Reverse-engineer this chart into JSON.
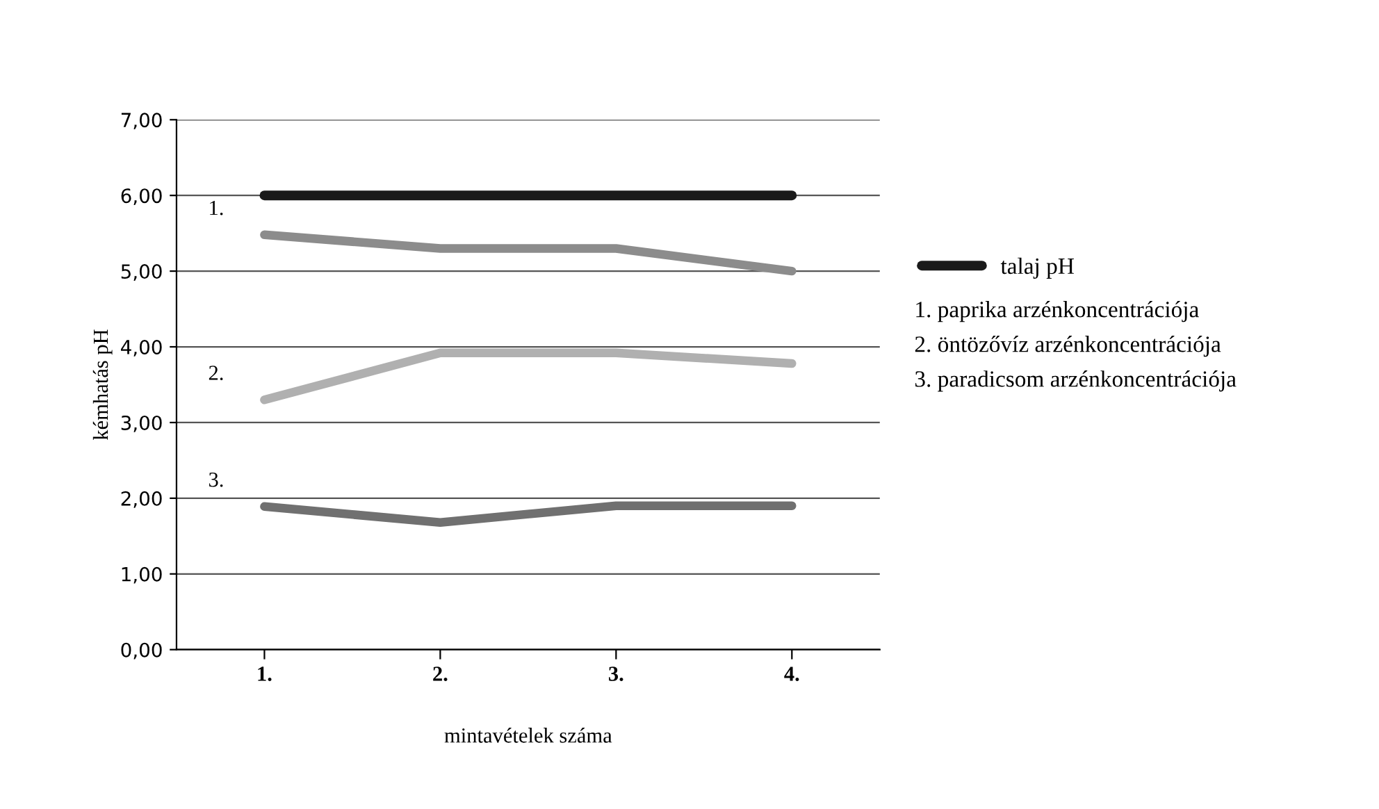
{
  "chart_data": {
    "type": "line",
    "xlabel": "mintavételek száma",
    "ylabel": "kémhatás pH",
    "categories": [
      "1.",
      "2.",
      "3.",
      "4."
    ],
    "series": [
      {
        "name": "talaj pH",
        "color": "#1a1a1a",
        "values": [
          6.0,
          6.0,
          6.0,
          6.0
        ]
      },
      {
        "name": "1.",
        "color": "#8c8c8c",
        "values": [
          5.48,
          5.3,
          5.3,
          5.0
        ]
      },
      {
        "name": "2.",
        "color": "#b0b0b0",
        "values": [
          3.3,
          3.92,
          3.92,
          3.78
        ]
      },
      {
        "name": "3.",
        "color": "#707070",
        "values": [
          1.89,
          1.68,
          1.9,
          1.9
        ]
      }
    ],
    "annotations": [
      "1. paprika arzénkoncentrációja",
      "2. öntözővíz arzénkoncentrációja",
      "3. paradicsom arzénkoncentrációja"
    ],
    "ylim": [
      0,
      7
    ],
    "yticks": [
      {
        "value": 0,
        "label": "0,00"
      },
      {
        "value": 1,
        "label": "1,00"
      },
      {
        "value": 2,
        "label": "2,00"
      },
      {
        "value": 3,
        "label": "3,00"
      },
      {
        "value": 4,
        "label": "4,00"
      },
      {
        "value": 5,
        "label": "5,00"
      },
      {
        "value": 6,
        "label": "6,00"
      },
      {
        "value": 7,
        "label": "7,00"
      }
    ],
    "grid": "y",
    "legend": "right",
    "marker": "none",
    "line_style": "solid"
  }
}
